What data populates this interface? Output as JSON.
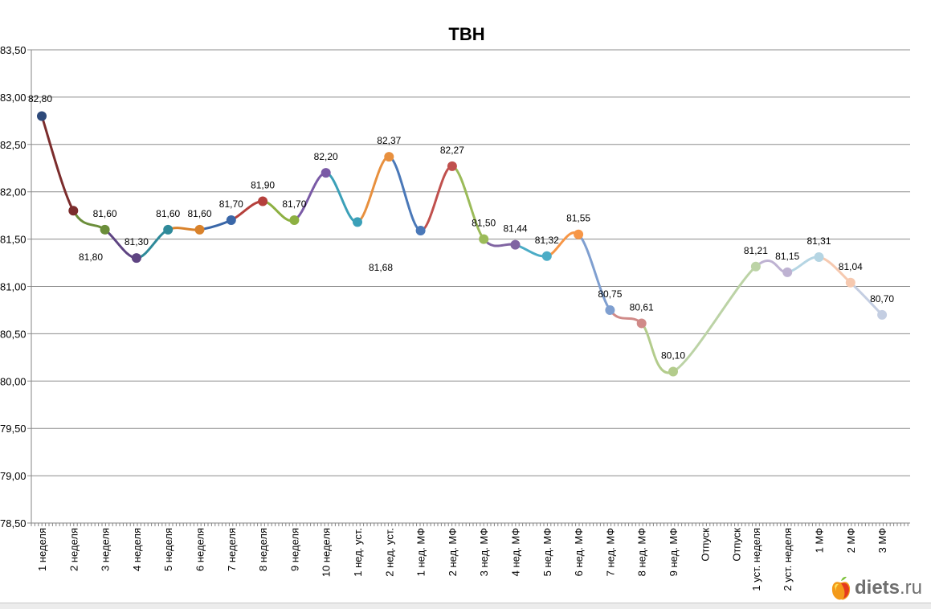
{
  "chart_data": {
    "type": "line",
    "title": "ТВН",
    "xlabel": "",
    "ylabel": "",
    "ylim": [
      78.5,
      83.5
    ],
    "ytick_step": 0.5,
    "yticks": [
      "78,50",
      "79,00",
      "79,50",
      "80,00",
      "80,50",
      "81,00",
      "81,50",
      "82,00",
      "82,50",
      "83,00",
      "83,50"
    ],
    "grid": true,
    "smooth": true,
    "categories": [
      "1 неделя",
      "2 неделя",
      "3 неделя",
      "4 неделя",
      "5 неделя",
      "6 неделя",
      "7 неделя",
      "8 неделя",
      "9 неделя",
      "10 неделя",
      "1 нед. уст.",
      "2 нед. уст.",
      "1 нед. МФ",
      "2 нед. МФ",
      "3 нед. МФ",
      "4 нед. МФ",
      "5 нед. МФ",
      "6 нед. МФ",
      "7 нед. МФ",
      "8 нед. МФ",
      "9 нед. МФ",
      "Отпуск",
      "Отпуск",
      "1 уст. неделя",
      "2 уст. неделя",
      "1 МФ",
      "2 МФ",
      "3 МФ"
    ],
    "values": [
      82.8,
      81.8,
      81.6,
      81.3,
      81.6,
      81.6,
      81.7,
      81.9,
      81.7,
      82.2,
      81.68,
      82.37,
      81.59,
      82.27,
      81.5,
      81.44,
      81.32,
      81.55,
      80.75,
      80.61,
      80.1,
      null,
      null,
      81.21,
      81.15,
      81.31,
      81.04,
      80.7
    ],
    "data_labels": [
      "82,80",
      "81,80",
      "81,60",
      "81,30",
      "81,60",
      "81,60",
      "81,70",
      "81,90",
      "81,70",
      "82,20",
      "81,68",
      "82,37",
      null,
      "82,27",
      "81,50",
      "81,44",
      "81,32",
      "81,55",
      "80,75",
      "80,61",
      "80,10",
      null,
      null,
      "81,21",
      "81,15",
      "81,31",
      "81,04",
      "80,70"
    ],
    "point_colors": [
      "#2E4A7A",
      "#7B2C2C",
      "#6B8E3A",
      "#5E4482",
      "#2F8A9A",
      "#D9822B",
      "#3A67A8",
      "#B5403C",
      "#8DB042",
      "#7A5AA6",
      "#3BA0B8",
      "#E8903E",
      "#4A78B8",
      "#C0504D",
      "#9BBB59",
      "#8064A2",
      "#4BACC6",
      "#F79646",
      "#7F9FD0",
      "#D08A88",
      "#B3CC8C",
      null,
      null,
      "#BCD3A6",
      "#BEB2D2",
      "#B5D5E3",
      "#F6C9B0",
      "#C4CEE2"
    ]
  },
  "watermark": {
    "brand": "diets",
    "tld": ".ru"
  }
}
